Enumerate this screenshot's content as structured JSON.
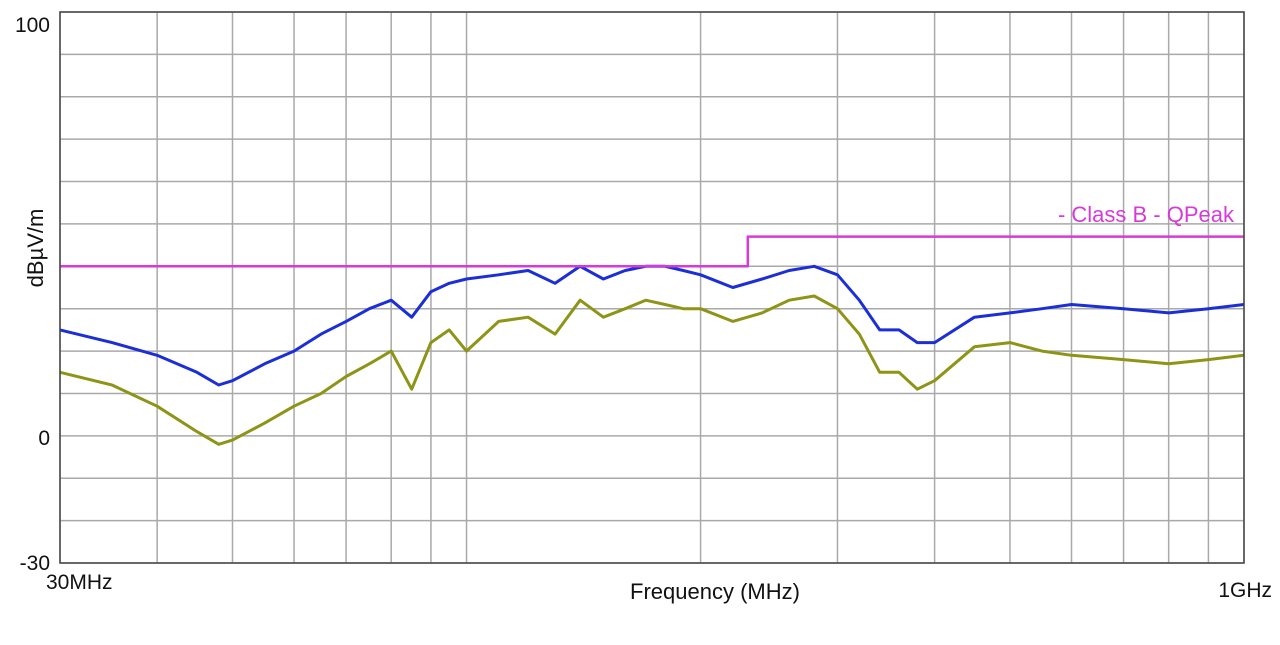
{
  "chart_data": {
    "type": "line",
    "title": "",
    "xlabel": "Frequency (MHz)",
    "ylabel": "dBµV/m",
    "xscale": "log",
    "xlim": [
      30,
      1000
    ],
    "ylim": [
      -30,
      100
    ],
    "x_tick_labels": [
      "30MHz",
      "1GHz"
    ],
    "y_tick_labels": [
      "100",
      "0",
      "-30"
    ],
    "y_ticks": [
      100,
      0,
      -30
    ],
    "grid": true,
    "legend": "top-right",
    "legend_text": "- Class B - QPeak",
    "colors": {
      "limit": "#d63ad8",
      "peak": "#1c2fd6",
      "average": "#8e9416",
      "grid": "#a9a9a9"
    },
    "series": [
      {
        "name": "Class B - QPeak",
        "role": "limit",
        "style": "step",
        "x": [
          30,
          230,
          230,
          1000
        ],
        "y": [
          40,
          40,
          47,
          47
        ]
      },
      {
        "role": "peak",
        "x": [
          30,
          35,
          40,
          45,
          48,
          50,
          55,
          60,
          65,
          70,
          75,
          80,
          85,
          90,
          95,
          100,
          110,
          120,
          130,
          140,
          150,
          160,
          170,
          180,
          190,
          200,
          220,
          240,
          260,
          280,
          300,
          320,
          340,
          360,
          380,
          400,
          450,
          500,
          550,
          600,
          700,
          800,
          900,
          1000
        ],
        "y": [
          25,
          22,
          19,
          15,
          12,
          13,
          17,
          20,
          24,
          27,
          30,
          32,
          28,
          34,
          36,
          37,
          38,
          39,
          36,
          40,
          37,
          39,
          40,
          40,
          39,
          38,
          35,
          37,
          39,
          40,
          38,
          32,
          25,
          25,
          22,
          22,
          28,
          29,
          30,
          31,
          30,
          29,
          30,
          31
        ]
      },
      {
        "role": "average",
        "x": [
          30,
          35,
          40,
          45,
          48,
          50,
          55,
          60,
          65,
          70,
          75,
          80,
          85,
          90,
          95,
          100,
          110,
          120,
          130,
          140,
          150,
          160,
          170,
          180,
          190,
          200,
          220,
          240,
          260,
          280,
          300,
          320,
          340,
          360,
          380,
          400,
          450,
          500,
          550,
          600,
          700,
          800,
          900,
          1000
        ],
        "y": [
          15,
          12,
          7,
          1,
          -2,
          -1,
          3,
          7,
          10,
          14,
          17,
          20,
          11,
          22,
          25,
          20,
          27,
          28,
          24,
          32,
          28,
          30,
          32,
          31,
          30,
          30,
          27,
          29,
          32,
          33,
          30,
          24,
          15,
          15,
          11,
          13,
          21,
          22,
          20,
          19,
          18,
          17,
          18,
          19
        ]
      }
    ]
  }
}
